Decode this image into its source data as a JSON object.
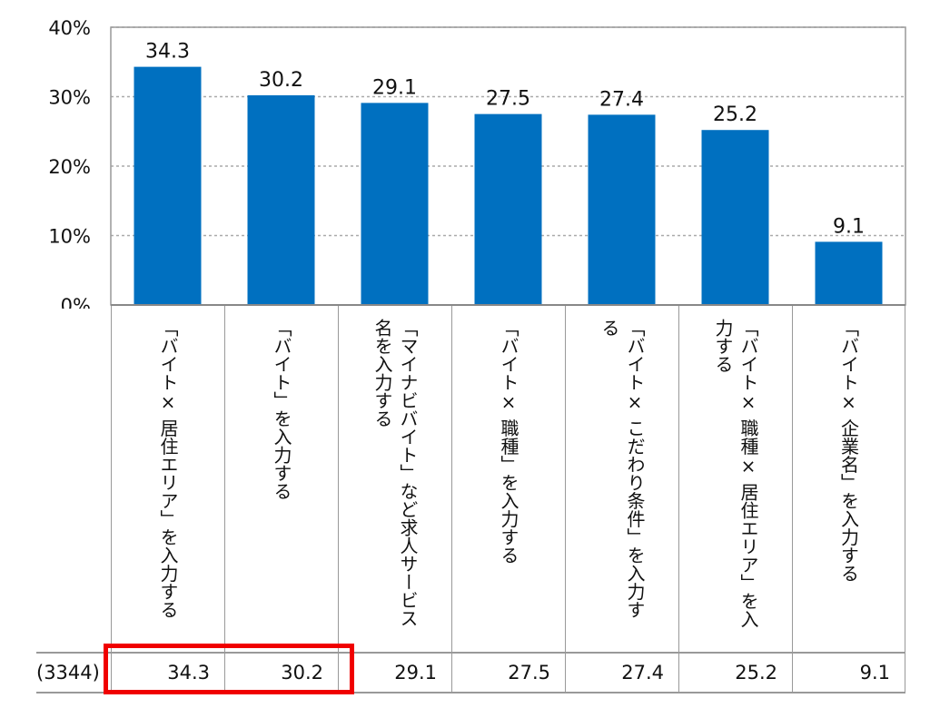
{
  "chart_data": {
    "type": "bar",
    "categories": [
      "「バイト× 居住エリア」を入力する",
      "「バイト」を入力する",
      "「マイナビバイト」など求人サービス名を入力する",
      "「バイト× 職種」を入力する",
      "「バイト× こだわり条件」を入力する",
      "「バイト× 職種× 居住エリア」を入力する",
      "「バイト× 企業名」を入力する"
    ],
    "values": [
      34.3,
      30.2,
      29.1,
      27.5,
      27.4,
      25.2,
      9.1
    ],
    "value_labels": [
      "34.3",
      "30.2",
      "29.1",
      "27.5",
      "27.4",
      "25.2",
      "9.1"
    ],
    "yticks": [
      "0%",
      "10%",
      "20%",
      "30%",
      "40%"
    ],
    "ylim": [
      0,
      40
    ],
    "grid": true,
    "bar_color": "#0070C0",
    "highlight_color": "#F00000",
    "table": {
      "n": "(3344)",
      "values": [
        "34.3",
        "30.2",
        "29.1",
        "27.5",
        "27.4",
        "25.2",
        "9.1"
      ]
    }
  }
}
